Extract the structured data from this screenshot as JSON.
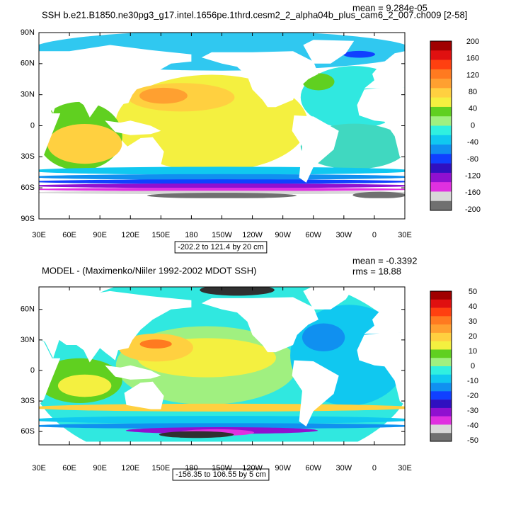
{
  "panels": [
    {
      "title": "SSH b.e21.B1850.ne30pg3_g17.intel.1656pe.1thrd.cesm2_2_alpha04b_plus_cam6_2_007.ch009 [2-58]",
      "mean": "mean = 9.284e-05",
      "lat_ticks": [
        "90N",
        "60N",
        "30N",
        "0",
        "30S",
        "60S",
        "90S"
      ],
      "lon_ticks": [
        "30E",
        "60E",
        "90E",
        "120E",
        "150E",
        "180",
        "150W",
        "120W",
        "90W",
        "60W",
        "30W",
        "0",
        "30E"
      ],
      "colorbar": {
        "labels": [
          "200",
          "160",
          "120",
          "80",
          "40",
          "0",
          "-40",
          "-80",
          "-120",
          "-160",
          "-200"
        ],
        "colors": [
          "#a00000",
          "#e01010",
          "#ff4010",
          "#ff7a20",
          "#ffa030",
          "#ffd040",
          "#f4f040",
          "#60d020",
          "#a0f080",
          "#30f0e0",
          "#10c8f0",
          "#1090f0",
          "#1040ff",
          "#3010c0",
          "#9010d0",
          "#e030e0",
          "#d8d8d8",
          "#707070"
        ]
      },
      "range_label": "-202.2 to 121.4 by 20 cm"
    },
    {
      "title": "MODEL - (Maximenko/Niiler 1992-2002 MDOT SSH)",
      "mean": "mean = -0.3392",
      "rms": "rms = 18.88",
      "lat_ticks": [
        "60N",
        "30N",
        "0",
        "30S",
        "60S"
      ],
      "lon_ticks": [
        "30E",
        "60E",
        "90E",
        "120E",
        "150E",
        "180",
        "150W",
        "120W",
        "90W",
        "60W",
        "30W",
        "0",
        "30E"
      ],
      "colorbar": {
        "labels": [
          "50",
          "40",
          "30",
          "20",
          "10",
          "0",
          "-10",
          "-20",
          "-30",
          "-40",
          "-50"
        ],
        "colors": [
          "#a00000",
          "#e01010",
          "#ff4010",
          "#ff7a20",
          "#ffa030",
          "#ffd040",
          "#f4f040",
          "#60d020",
          "#a0f080",
          "#30f0e0",
          "#10c8f0",
          "#1090f0",
          "#1040ff",
          "#3010c0",
          "#9010d0",
          "#e030e0",
          "#d8d8d8",
          "#707070"
        ]
      },
      "range_label": "-156.35 to 106.55 by 5 cm"
    }
  ]
}
